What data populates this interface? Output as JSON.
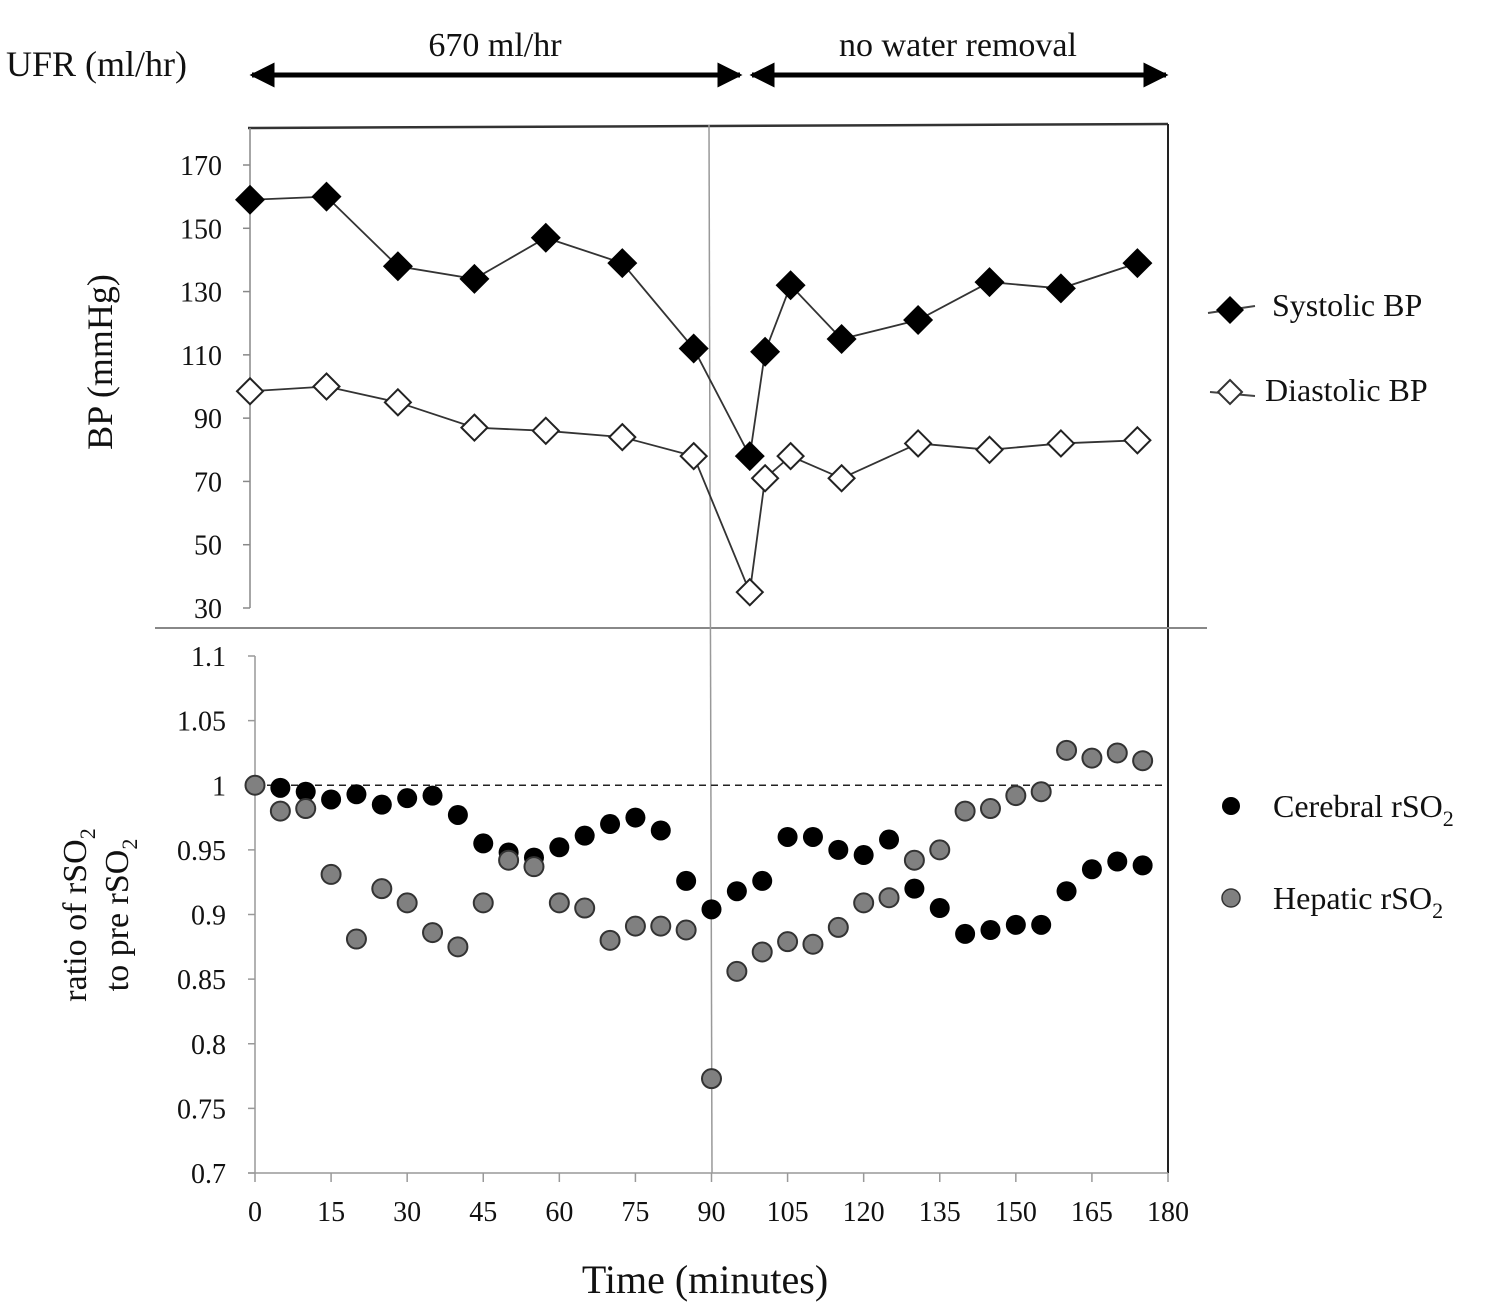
{
  "header": {
    "ufr_label": "UFR (ml/hr)",
    "phase1_label": "670 ml/hr",
    "phase2_label": "no water removal"
  },
  "chart_data": [
    {
      "type": "line",
      "title": "",
      "xlabel": "",
      "ylabel": "BP (mmHg)",
      "ylim": [
        30,
        180
      ],
      "yticks": [
        "30",
        "50",
        "70",
        "90",
        "110",
        "130",
        "150",
        "170"
      ],
      "xlim": [
        0,
        180
      ],
      "grid": false,
      "legend": "right",
      "vline_at_minutes": 90,
      "series": [
        {
          "name": "Systolic BP",
          "marker": "filled-diamond",
          "x": [
            0,
            15,
            29,
            44,
            58,
            73,
            87,
            98,
            101,
            106,
            116,
            131,
            145,
            159,
            174
          ],
          "values": [
            159,
            160,
            138,
            134,
            147,
            139,
            112,
            78,
            111,
            132,
            115,
            121,
            133,
            131,
            139
          ]
        },
        {
          "name": "Diastolic BP",
          "marker": "open-diamond",
          "x": [
            0,
            15,
            29,
            44,
            58,
            73,
            87,
            98,
            101,
            106,
            116,
            131,
            145,
            159,
            174
          ],
          "values": [
            98.5,
            100,
            95,
            87,
            86,
            84,
            78,
            35,
            71,
            78,
            71,
            82,
            80,
            82,
            83
          ]
        }
      ]
    },
    {
      "type": "scatter",
      "title": "",
      "xlabel": "Time (minutes)",
      "ylabel_line1": "ratio of  rSO",
      "ylabel_line2": "to pre rSO",
      "ylabel_sub": "2",
      "ylim": [
        0.7,
        1.1
      ],
      "yticks": [
        "0.7",
        "0.75",
        "0.8",
        "0.85",
        "0.9",
        "0.95",
        "1",
        "1.05",
        "1.1"
      ],
      "xlim": [
        0,
        180
      ],
      "xticks": [
        "0",
        "15",
        "30",
        "45",
        "60",
        "75",
        "90",
        "105",
        "120",
        "135",
        "150",
        "165",
        "180"
      ],
      "reference_line": 1.0,
      "vline_at_minutes": 90,
      "grid": false,
      "legend": "right",
      "x": [
        0,
        5,
        10,
        15,
        20,
        25,
        30,
        35,
        40,
        45,
        50,
        55,
        60,
        65,
        70,
        75,
        80,
        85,
        90,
        95,
        100,
        105,
        110,
        115,
        120,
        125,
        130,
        135,
        140,
        145,
        150,
        155,
        160,
        165,
        170,
        175
      ],
      "series": [
        {
          "name": "Cerebral rSO2",
          "label_main": "Cerebral rSO",
          "label_sub": "2",
          "color": "#000000",
          "values": [
            1.0,
            0.998,
            0.995,
            0.989,
            0.993,
            0.985,
            0.99,
            0.992,
            0.977,
            0.955,
            0.948,
            0.944,
            0.952,
            0.961,
            0.97,
            0.975,
            0.965,
            0.926,
            0.904,
            0.918,
            0.926,
            0.96,
            0.96,
            0.95,
            0.946,
            0.958,
            0.92,
            0.905,
            0.885,
            0.888,
            0.892,
            0.892,
            0.918,
            0.935,
            0.941,
            0.938
          ]
        },
        {
          "name": "Hepatic rSO2",
          "label_main": "Hepatic rSO",
          "label_sub": "2",
          "color": "#808080",
          "values": [
            1.0,
            0.98,
            0.982,
            0.931,
            0.881,
            0.92,
            0.909,
            0.886,
            0.875,
            0.909,
            0.942,
            0.937,
            0.909,
            0.905,
            0.88,
            0.891,
            0.891,
            0.888,
            0.773,
            0.856,
            0.871,
            0.879,
            0.877,
            0.89,
            0.909,
            0.913,
            0.942,
            0.95,
            0.98,
            0.982,
            0.992,
            0.995,
            1.027,
            1.021,
            1.025,
            1.019
          ]
        }
      ]
    }
  ]
}
